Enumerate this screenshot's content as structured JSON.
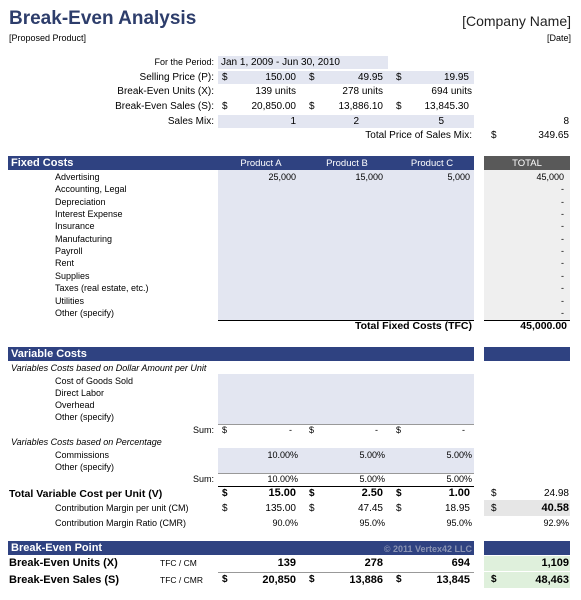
{
  "header": {
    "title": "Break-Even Analysis",
    "subtitle": "[Proposed Product]",
    "company": "[Company Name]",
    "date": "[Date]"
  },
  "top": {
    "period_label": "For the Period:",
    "period_value": "Jan 1, 2009 - Jun 30, 2010",
    "price_label": "Selling Price (P):",
    "prices": [
      "150.00",
      "49.95",
      "19.95"
    ],
    "units_label": "Break-Even Units (X):",
    "units": [
      "139 units",
      "278 units",
      "694 units"
    ],
    "sales_label": "Break-Even Sales (S):",
    "sales": [
      "20,850.00",
      "13,886.10",
      "13,845.30"
    ],
    "mix_label": "Sales Mix:",
    "mix": [
      "1",
      "2",
      "5"
    ],
    "mix_total": "8",
    "total_price_label": "Total Price of Sales Mix:",
    "total_price": "349.65",
    "currency": "$"
  },
  "fixed": {
    "title": "Fixed Costs",
    "col_a": "Product A",
    "col_b": "Product B",
    "col_c": "Product C",
    "col_total": "TOTAL",
    "items": [
      {
        "label": "Advertising",
        "a": "25,000",
        "b": "15,000",
        "c": "5,000",
        "total": "45,000"
      },
      {
        "label": "Accounting, Legal",
        "a": "",
        "b": "",
        "c": "",
        "total": "-"
      },
      {
        "label": "Depreciation",
        "a": "",
        "b": "",
        "c": "",
        "total": "-"
      },
      {
        "label": "Interest Expense",
        "a": "",
        "b": "",
        "c": "",
        "total": "-"
      },
      {
        "label": "Insurance",
        "a": "",
        "b": "",
        "c": "",
        "total": "-"
      },
      {
        "label": "Manufacturing",
        "a": "",
        "b": "",
        "c": "",
        "total": "-"
      },
      {
        "label": "Payroll",
        "a": "",
        "b": "",
        "c": "",
        "total": "-"
      },
      {
        "label": "Rent",
        "a": "",
        "b": "",
        "c": "",
        "total": "-"
      },
      {
        "label": "Supplies",
        "a": "",
        "b": "",
        "c": "",
        "total": "-"
      },
      {
        "label": "Taxes (real estate, etc.)",
        "a": "",
        "b": "",
        "c": "",
        "total": "-"
      },
      {
        "label": "Utilities",
        "a": "",
        "b": "",
        "c": "",
        "total": "-"
      },
      {
        "label": "Other (specify)",
        "a": "",
        "b": "",
        "c": "",
        "total": "-"
      }
    ],
    "tfc_label": "Total Fixed Costs (TFC)",
    "tfc_value": "45,000.00"
  },
  "variable": {
    "title": "Variable Costs",
    "dollar_heading": "Variables Costs based on Dollar Amount per Unit",
    "dollar_items": [
      "Cost of Goods Sold",
      "Direct Labor",
      "Overhead",
      "Other (specify)"
    ],
    "sum_label": "Sum:",
    "sum_dollar": [
      "-",
      "-",
      "-"
    ],
    "pct_heading": "Variables Costs based on Percentage",
    "pct_items": [
      {
        "label": "Commissions",
        "a": "10.00%",
        "b": "5.00%",
        "c": "5.00%"
      },
      {
        "label": "Other (specify)",
        "a": "",
        "b": "",
        "c": ""
      }
    ],
    "sum_pct": [
      "10.00%",
      "5.00%",
      "5.00%"
    ],
    "tvc_label": "Total Variable Cost per Unit (V)",
    "tvc": [
      "15.00",
      "2.50",
      "1.00"
    ],
    "tvc_total": "24.98",
    "cm_label": "Contribution Margin per unit (CM)",
    "cm": [
      "135.00",
      "47.45",
      "18.95"
    ],
    "cm_total": "40.58",
    "cmr_label": "Contribution Margin Ratio (CMR)",
    "cmr": [
      "90.0%",
      "95.0%",
      "95.0%"
    ],
    "cmr_total": "92.9%"
  },
  "bep": {
    "title": "Break-Even Point",
    "watermark": "© 2011 Vertex42 LLC",
    "units_label": "Break-Even Units (X)",
    "units_formula": "TFC / CM",
    "units": [
      "139",
      "278",
      "694"
    ],
    "units_total": "1,109",
    "sales_label": "Break-Even Sales (S)",
    "sales_formula": "TFC / CMR",
    "sales": [
      "20,850",
      "13,886",
      "13,845"
    ],
    "sales_total": "48,463"
  },
  "colors": {
    "band": "#2f4281",
    "input_shade": "#e3e6f1",
    "total_gray": "#efefef",
    "result_green": "#dff0dc"
  }
}
